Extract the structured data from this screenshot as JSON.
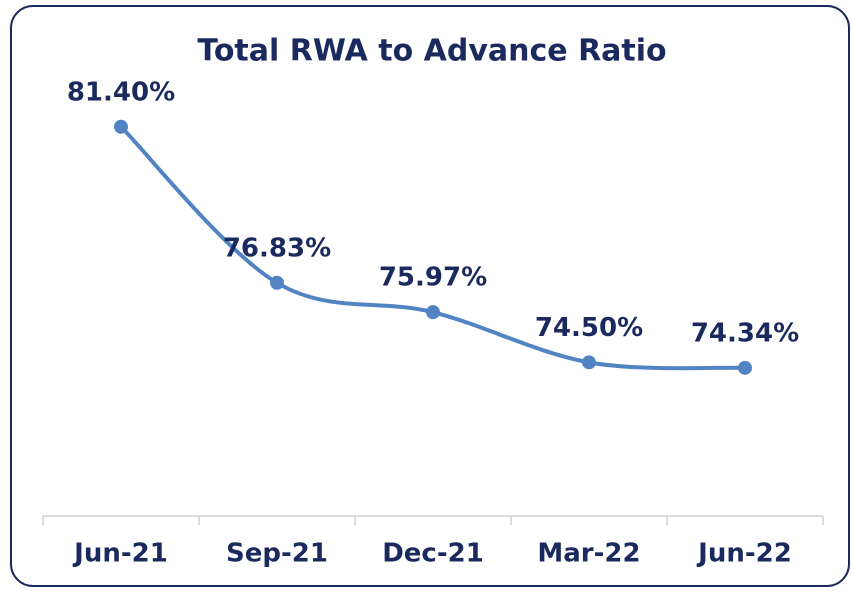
{
  "chart_data": {
    "type": "line",
    "title": "Total RWA  to Advance Ratio",
    "categories": [
      "Jun-21",
      "Sep-21",
      "Dec-21",
      "Mar-22",
      "Jun-22"
    ],
    "series": [
      {
        "name": "Total RWA to Advance Ratio",
        "color": "#5283c2",
        "values": [
          81.4,
          76.83,
          75.97,
          74.5,
          74.34
        ],
        "value_labels": [
          "81.40%",
          "76.83%",
          "75.97%",
          "74.50%",
          "74.34%"
        ]
      }
    ],
    "ylim": [
      70,
      84
    ],
    "grid": false
  }
}
